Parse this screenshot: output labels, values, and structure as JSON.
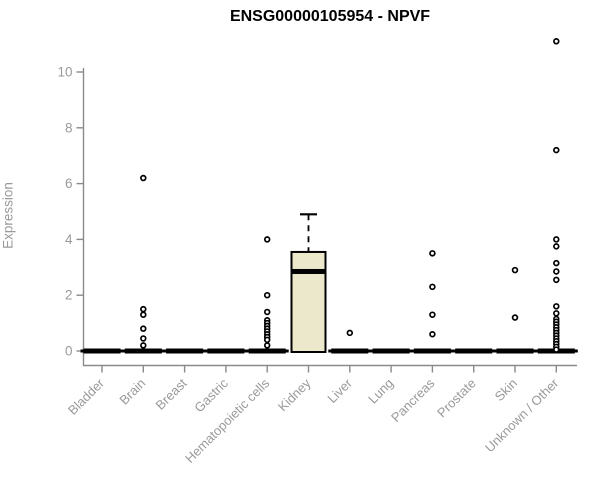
{
  "chart_data": {
    "type": "boxplot",
    "title": "ENSG00000105954 - NPVF",
    "ylabel": "Expression",
    "xlabel": "",
    "ylim": [
      0,
      11.2
    ],
    "yticks": [
      0,
      2,
      4,
      6,
      8,
      10
    ],
    "grid": false,
    "legend": "none",
    "colors": {
      "box_fill": "#ece8cb",
      "box_stroke": "#000000",
      "bar_color": "#000000",
      "axis_color": "#8a8a8a",
      "tick_text_color": "#9a9a9a",
      "title_color": "#000000",
      "outlier_fill": "#ffffff",
      "outlier_stroke": "#000000"
    },
    "categories": [
      "Bladder",
      "Brain",
      "Breast",
      "Gastric",
      "Hematopoietic cells",
      "Kidney",
      "Liver",
      "Lung",
      "Pancreas",
      "Prostate",
      "Skin",
      "Unknown / Other"
    ],
    "series": [
      {
        "label": "Bladder",
        "stats": {
          "q1": 0,
          "median": 0,
          "q3": 0,
          "whisker_low": 0,
          "whisker_high": 0
        },
        "outliers": []
      },
      {
        "label": "Brain",
        "stats": {
          "q1": 0,
          "median": 0,
          "q3": 0,
          "whisker_low": 0,
          "whisker_high": 0
        },
        "outliers": [
          6.2,
          1.5,
          1.3,
          0.8,
          0.45,
          0.2
        ]
      },
      {
        "label": "Breast",
        "stats": {
          "q1": 0,
          "median": 0,
          "q3": 0,
          "whisker_low": 0,
          "whisker_high": 0
        },
        "outliers": []
      },
      {
        "label": "Gastric",
        "stats": {
          "q1": 0,
          "median": 0,
          "q3": 0,
          "whisker_low": 0,
          "whisker_high": 0
        },
        "outliers": []
      },
      {
        "label": "Hematopoietic cells",
        "stats": {
          "q1": 0,
          "median": 0,
          "q3": 0,
          "whisker_low": 0,
          "whisker_high": 0
        },
        "outliers": [
          4.0,
          2.0,
          1.4,
          1.1,
          1.0,
          0.9,
          0.8,
          0.7,
          0.6,
          0.5,
          0.4,
          0.2
        ]
      },
      {
        "label": "Kidney",
        "stats": {
          "q1": 0,
          "median": 2.85,
          "q3": 3.55,
          "whisker_low": 0,
          "whisker_high": 4.9
        },
        "outliers": []
      },
      {
        "label": "Liver",
        "stats": {
          "q1": 0,
          "median": 0,
          "q3": 0,
          "whisker_low": 0,
          "whisker_high": 0
        },
        "outliers": [
          0.65
        ]
      },
      {
        "label": "Lung",
        "stats": {
          "q1": 0,
          "median": 0,
          "q3": 0,
          "whisker_low": 0,
          "whisker_high": 0
        },
        "outliers": []
      },
      {
        "label": "Pancreas",
        "stats": {
          "q1": 0,
          "median": 0,
          "q3": 0,
          "whisker_low": 0,
          "whisker_high": 0
        },
        "outliers": [
          3.5,
          2.3,
          1.3,
          0.6
        ]
      },
      {
        "label": "Prostate",
        "stats": {
          "q1": 0,
          "median": 0,
          "q3": 0,
          "whisker_low": 0,
          "whisker_high": 0
        },
        "outliers": []
      },
      {
        "label": "Skin",
        "stats": {
          "q1": 0,
          "median": 0,
          "q3": 0,
          "whisker_low": 0,
          "whisker_high": 0
        },
        "outliers": [
          2.9,
          1.2
        ]
      },
      {
        "label": "Unknown / Other",
        "stats": {
          "q1": 0,
          "median": 0,
          "q3": 0,
          "whisker_low": 0,
          "whisker_high": 0
        },
        "outliers": [
          11.1,
          7.2,
          4.0,
          3.75,
          3.15,
          2.85,
          2.55,
          1.6,
          1.35,
          1.15,
          1.05,
          0.95,
          0.85,
          0.75,
          0.65,
          0.55,
          0.45,
          0.35,
          0.25,
          0.15,
          0.05
        ]
      }
    ]
  }
}
